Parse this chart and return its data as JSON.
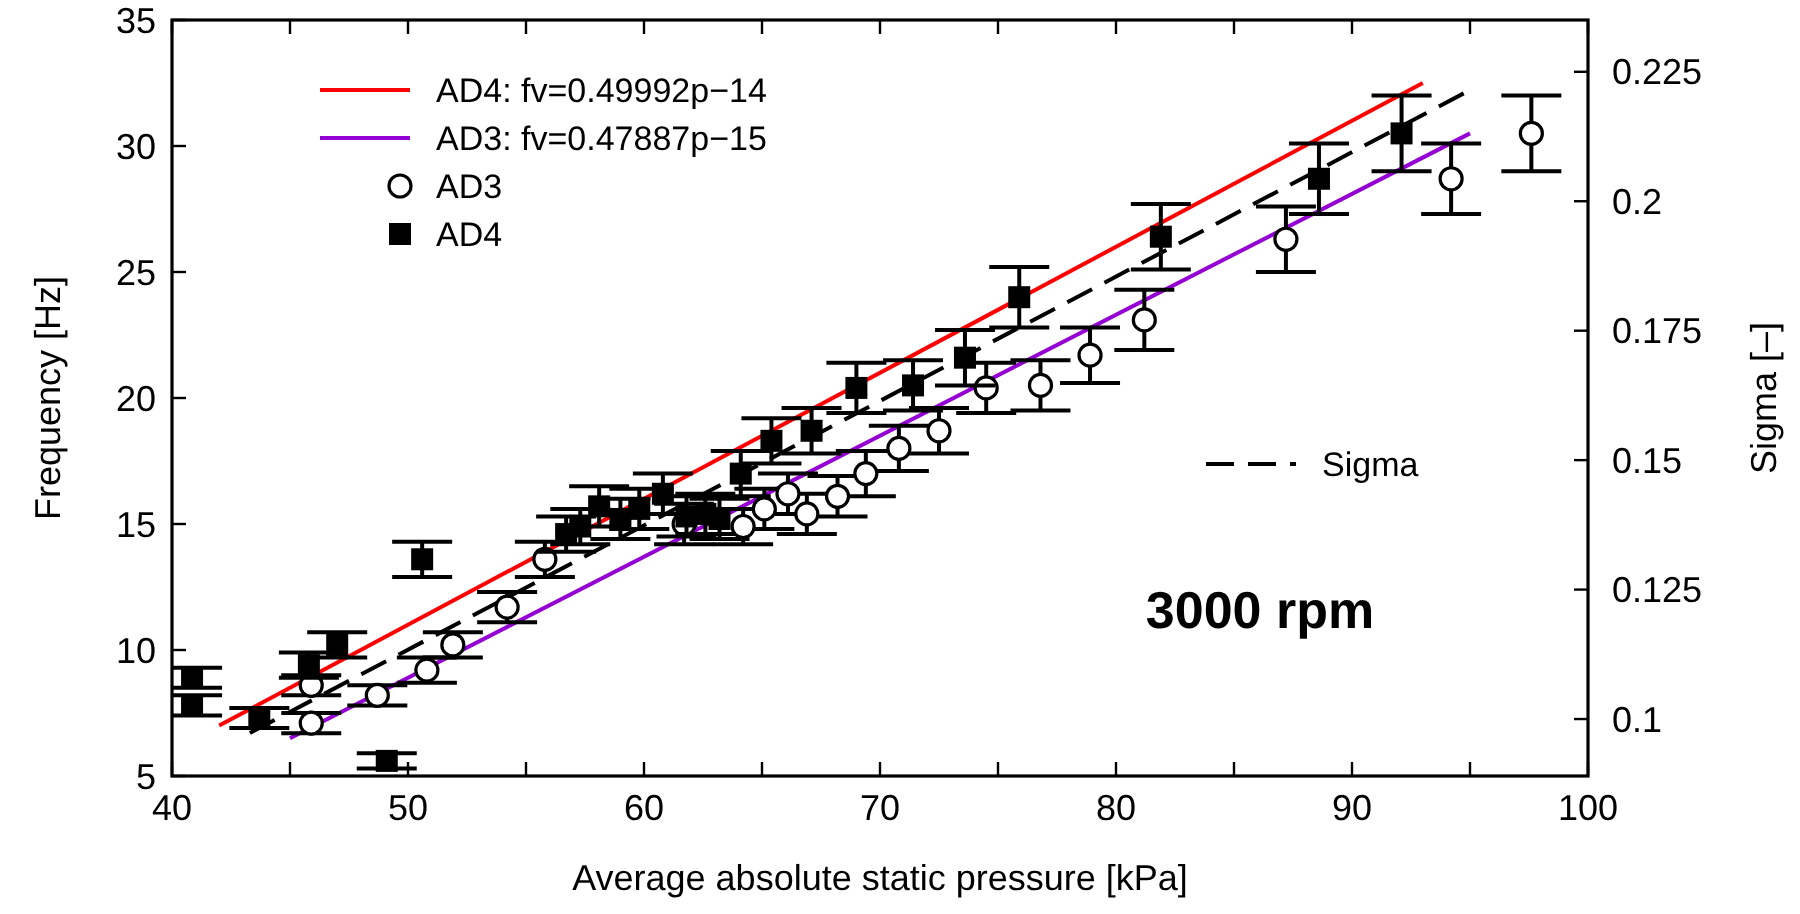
{
  "chart_data": {
    "type": "scatter",
    "xlabel": "Average absolute static pressure [kPa]",
    "ylabel": "Frequency [Hz]",
    "y2label": "Sigma [–]",
    "xlim": [
      40,
      100
    ],
    "ylim": [
      5,
      35
    ],
    "y2lim": [
      0.089,
      0.235
    ],
    "xticks": [
      40,
      {
        "value": 45,
        "label": null
      },
      50,
      {
        "value": 55,
        "label": null
      },
      60,
      {
        "value": 65,
        "label": null
      },
      70,
      {
        "value": 75,
        "label": null
      },
      80,
      {
        "value": 85,
        "label": null
      },
      90,
      {
        "value": 95,
        "label": null
      },
      100
    ],
    "yticks": [
      5,
      10,
      15,
      20,
      25,
      30,
      35
    ],
    "y2ticks": [
      0.1,
      0.125,
      0.15,
      0.175,
      0.2,
      0.225
    ],
    "legend": "top left",
    "grid": false,
    "annotations": [
      "3000 rpm"
    ],
    "series": [
      {
        "name": "AD4: fv=0.49992p−14",
        "type": "line",
        "color": "#ff0000",
        "line_style": "solid",
        "x": [
          42,
          93
        ],
        "values": [
          7.0,
          32.5
        ]
      },
      {
        "name": "AD3: fv=0.47887p−15",
        "type": "line",
        "color": "#9400d3",
        "line_style": "solid",
        "x": [
          45,
          95
        ],
        "values": [
          6.5,
          30.5
        ]
      },
      {
        "name": "AD3",
        "marker": "circle",
        "color": "#000000",
        "x": [
          45.9,
          45.9,
          48.7,
          50.8,
          51.9,
          54.2,
          55.8,
          61.7,
          64.2,
          65.1,
          66.1,
          66.9,
          68.2,
          69.4,
          70.8,
          72.5,
          74.5,
          76.8,
          78.9,
          81.2,
          87.2,
          94.2,
          97.6
        ],
        "values": [
          8.6,
          7.1,
          8.2,
          9.2,
          10.2,
          11.7,
          13.6,
          15.0,
          14.9,
          15.6,
          16.2,
          15.4,
          16.1,
          17.0,
          18.0,
          18.7,
          20.4,
          20.5,
          21.7,
          23.1,
          26.3,
          28.7,
          30.5
        ],
        "errors": [
          0.4,
          0.4,
          0.4,
          0.5,
          0.5,
          0.6,
          0.7,
          0.8,
          0.7,
          0.8,
          0.8,
          0.8,
          0.8,
          0.9,
          0.9,
          0.9,
          1.0,
          1.0,
          1.1,
          1.2,
          1.3,
          1.4,
          1.5
        ]
      },
      {
        "name": "AD4",
        "marker": "square",
        "color": "#000000",
        "x": [
          40.85,
          40.85,
          43.7,
          45.8,
          47.0,
          49.1,
          50.6,
          56.7,
          57.3,
          58.1,
          59.0,
          59.8,
          60.8,
          61.8,
          62.6,
          63.2,
          64.1,
          65.4,
          67.1,
          69.0,
          71.4,
          73.6,
          75.9,
          81.9,
          88.6,
          92.1
        ],
        "values": [
          8.9,
          7.8,
          7.3,
          9.4,
          10.2,
          5.6,
          13.6,
          14.6,
          14.9,
          15.7,
          15.2,
          15.6,
          16.2,
          15.3,
          15.4,
          15.2,
          17.0,
          18.3,
          18.7,
          20.4,
          20.5,
          21.6,
          24.0,
          26.4,
          28.7,
          30.5
        ],
        "errors": [
          0.4,
          0.4,
          0.4,
          0.5,
          0.5,
          0.3,
          0.7,
          0.7,
          0.7,
          0.8,
          0.8,
          0.8,
          0.8,
          0.8,
          0.8,
          0.8,
          0.9,
          0.9,
          0.9,
          1.0,
          1.0,
          1.1,
          1.2,
          1.3,
          1.4,
          1.5
        ]
      },
      {
        "name": "Sigma",
        "type": "line",
        "axis": "y2",
        "color": "#000000",
        "line_style": "dashed",
        "x": [
          43.3,
          94.8
        ],
        "values": [
          0.0973,
          0.221
        ]
      }
    ]
  }
}
